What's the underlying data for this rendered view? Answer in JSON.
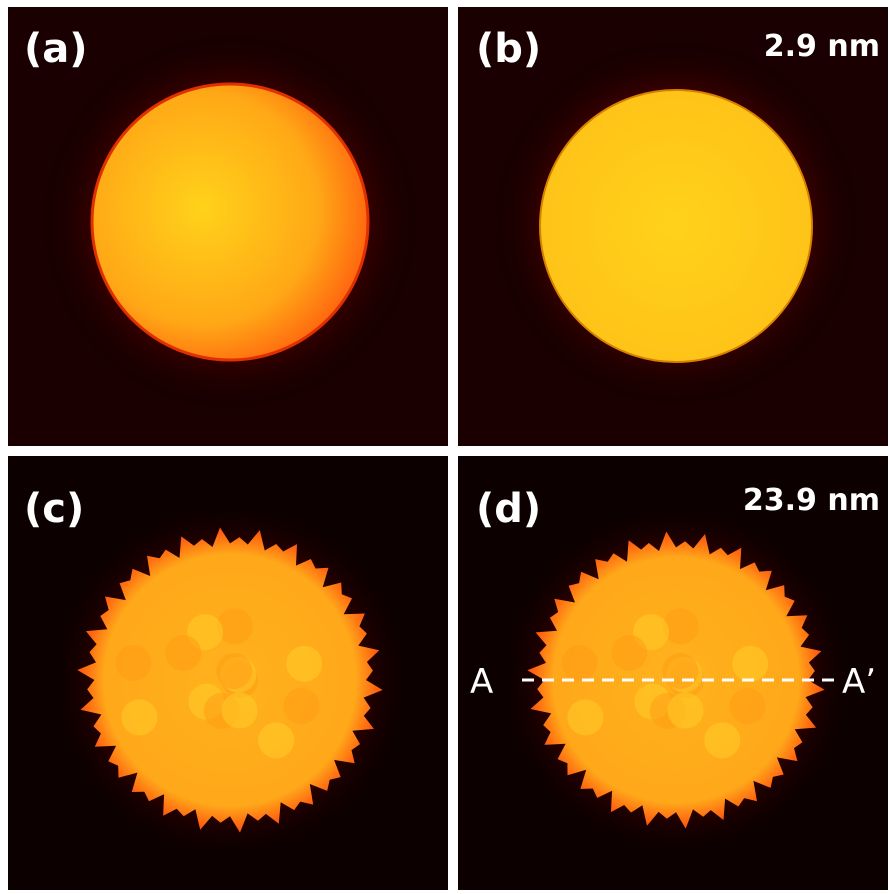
{
  "panels": [
    {
      "label": "(a)"
    },
    {
      "label": "(b)",
      "scale": "2.9 nm"
    },
    {
      "label": "(c)"
    },
    {
      "label": "(d)",
      "scale": "23.9 nm",
      "line_start": "A",
      "line_end": "A’"
    }
  ]
}
